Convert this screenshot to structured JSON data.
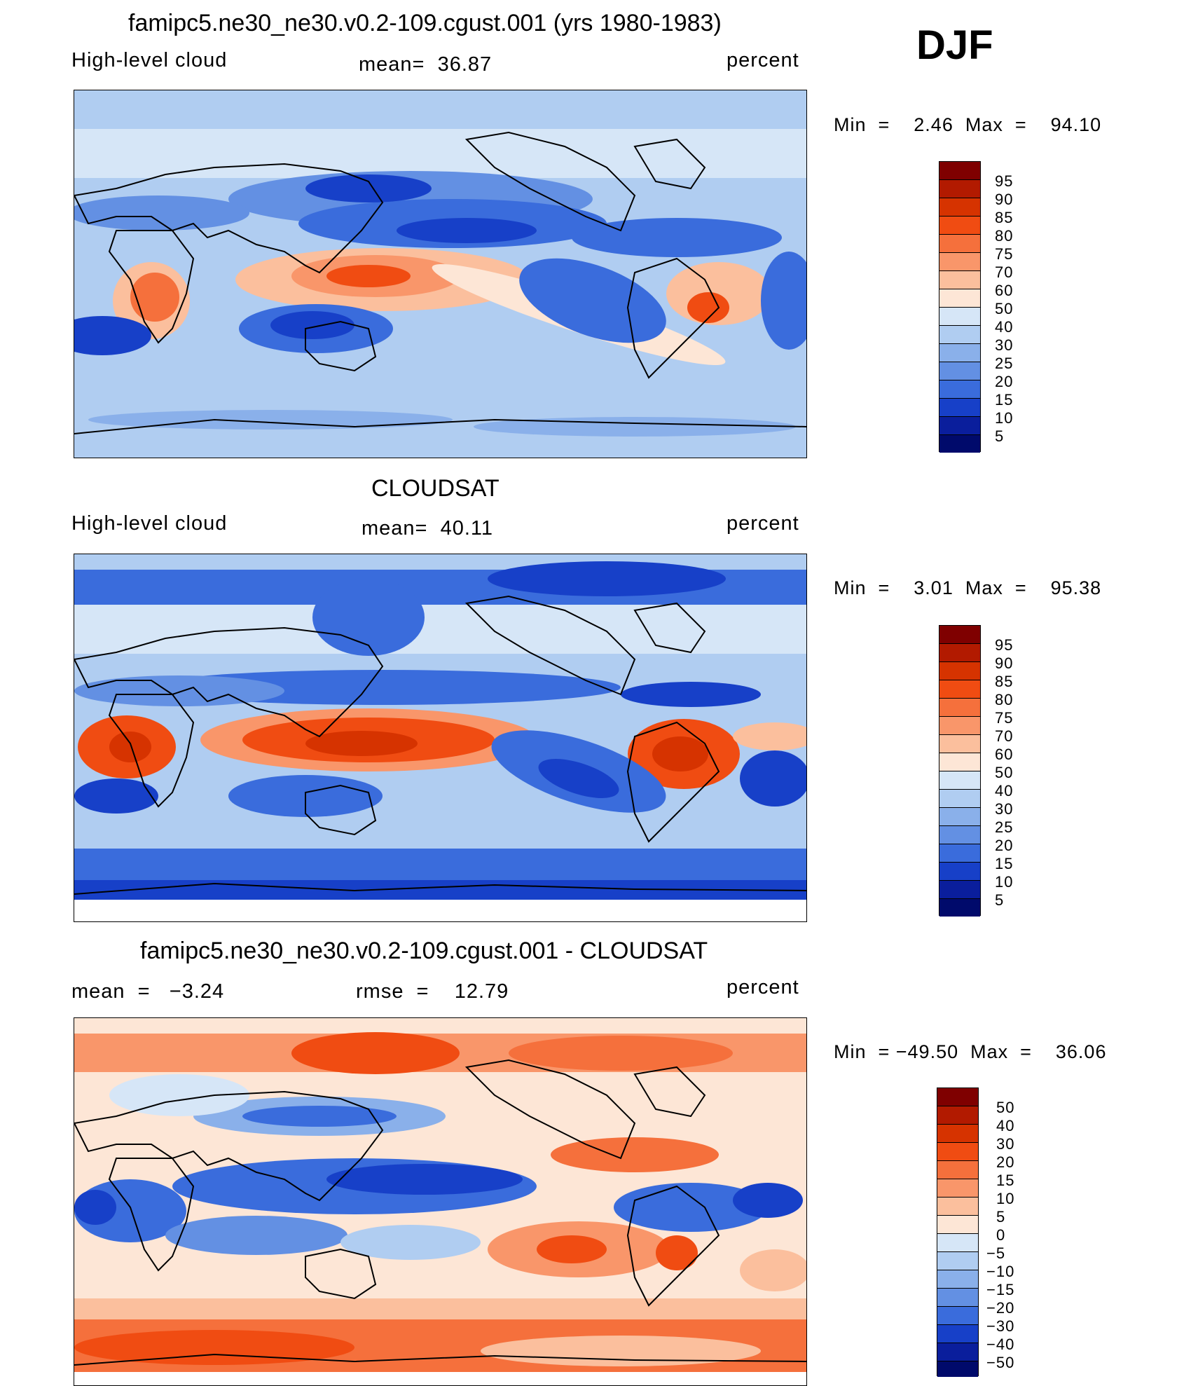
{
  "season": "DJF",
  "panels": [
    {
      "id": "model",
      "title": "famipc5.ne30_ne30.v0.2-109.cgust.001 (yrs 1980-1983)",
      "left_label": "High-level cloud",
      "center_label": "mean=  36.87",
      "right_label": "percent",
      "minmax": "Min  =    2.46  Max  =    94.10",
      "colorbar_ticks": [
        "95",
        "90",
        "85",
        "80",
        "75",
        "70",
        "60",
        "50",
        "40",
        "30",
        "25",
        "20",
        "15",
        "10",
        "5"
      ],
      "colors": [
        "#7f0000",
        "#b21a00",
        "#d63300",
        "#f04c12",
        "#f5703c",
        "#f9966a",
        "#fbbf9d",
        "#fde6d6",
        "#d6e6f7",
        "#b0cdf1",
        "#8ab0ea",
        "#6390e3",
        "#3a6cdc",
        "#1740c8",
        "#0a1e9c",
        "#000a6b"
      ]
    },
    {
      "id": "obs",
      "title": "CLOUDSAT",
      "left_label": "High-level cloud",
      "center_label": "mean=  40.11",
      "right_label": "percent",
      "minmax": "Min  =    3.01  Max  =    95.38",
      "colorbar_ticks": [
        "95",
        "90",
        "85",
        "80",
        "75",
        "70",
        "60",
        "50",
        "40",
        "30",
        "25",
        "20",
        "15",
        "10",
        "5"
      ],
      "colors": [
        "#7f0000",
        "#b21a00",
        "#d63300",
        "#f04c12",
        "#f5703c",
        "#f9966a",
        "#fbbf9d",
        "#fde6d6",
        "#d6e6f7",
        "#b0cdf1",
        "#8ab0ea",
        "#6390e3",
        "#3a6cdc",
        "#1740c8",
        "#0a1e9c",
        "#000a6b"
      ]
    },
    {
      "id": "diff",
      "title": "famipc5.ne30_ne30.v0.2-109.cgust.001 - CLOUDSAT",
      "left_label": "mean  =   −3.24",
      "center_label": "rmse  =    12.79",
      "right_label": "percent",
      "minmax": "Min  = −49.50  Max  =    36.06",
      "colorbar_ticks": [
        "50",
        "40",
        "30",
        "20",
        "15",
        "10",
        "5",
        "0",
        "−5",
        "−10",
        "−15",
        "−20",
        "−30",
        "−40",
        "−50"
      ],
      "colors": [
        "#7f0000",
        "#b21a00",
        "#d63300",
        "#f04c12",
        "#f5703c",
        "#f9966a",
        "#fbbf9d",
        "#fde6d6",
        "#d6e6f7",
        "#b0cdf1",
        "#8ab0ea",
        "#6390e3",
        "#3a6cdc",
        "#1740c8",
        "#0a1e9c",
        "#000a6b"
      ]
    }
  ]
}
